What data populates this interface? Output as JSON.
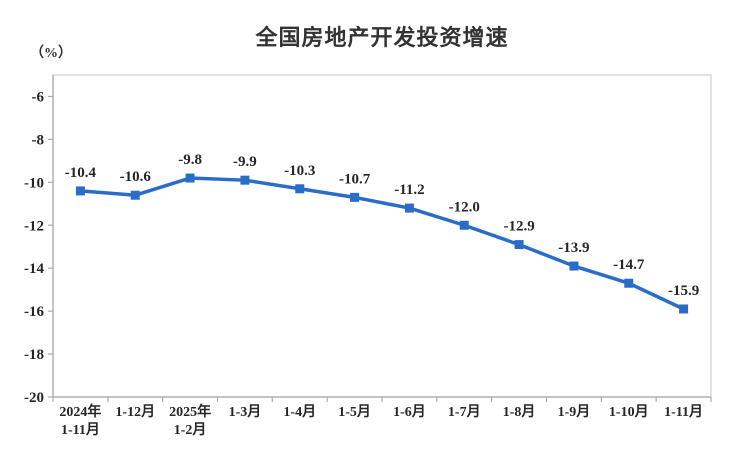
{
  "chart_data": {
    "type": "line",
    "title": "全国房地产开发投资增速",
    "unit_label": "（%）",
    "categories": [
      "2024年\n1-11月",
      "1-12月",
      "2025年\n1-2月",
      "1-3月",
      "1-4月",
      "1-5月",
      "1-6月",
      "1-7月",
      "1-8月",
      "1-9月",
      "1-10月",
      "1-11月"
    ],
    "values": [
      -10.4,
      -10.6,
      -9.8,
      -9.9,
      -10.3,
      -10.7,
      -11.2,
      -12.0,
      -12.9,
      -13.9,
      -14.7,
      -15.9
    ],
    "data_labels": [
      "-10.4",
      "-10.6",
      "-9.8",
      "-9.9",
      "-10.3",
      "-10.7",
      "-11.2",
      "-12.0",
      "-12.9",
      "-13.9",
      "-14.7",
      "-15.9"
    ],
    "ylim": [
      -20,
      -5
    ],
    "yticks": [
      -6,
      -8,
      -10,
      -12,
      -14,
      -16,
      -18,
      -20
    ],
    "grid": false,
    "legend_position": "none",
    "line_color": "#2A6DC9",
    "marker_style": "square",
    "text_color": "#262626",
    "axis_color": "#ABABAB",
    "border_color": "#D9D9D9"
  }
}
